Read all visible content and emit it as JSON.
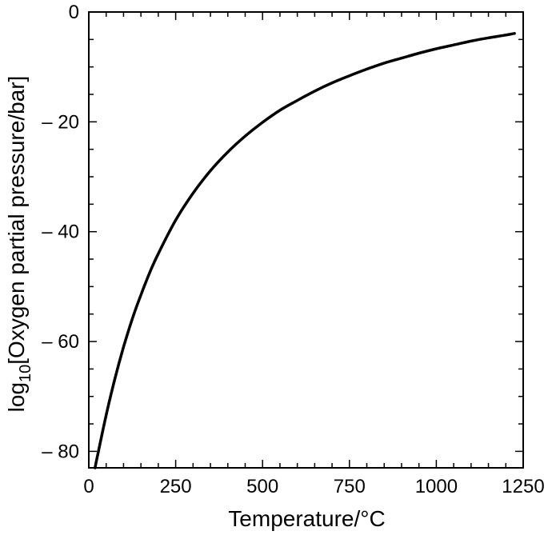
{
  "chart_data": {
    "type": "line",
    "title": "",
    "xlabel": "Temperature/°C",
    "ylabel": {
      "prefix": "log",
      "subscript": "10",
      "suffix": "[Oxygen partial pressure/bar]"
    },
    "xlim": [
      0,
      1250
    ],
    "ylim": [
      -83,
      0
    ],
    "grid": false,
    "legend": "none",
    "x_ticks": [
      {
        "value": 0,
        "label": "0"
      },
      {
        "value": 250,
        "label": "250"
      },
      {
        "value": 500,
        "label": "500"
      },
      {
        "value": 750,
        "label": "750"
      },
      {
        "value": 1000,
        "label": "1000"
      },
      {
        "value": 1250,
        "label": "1250"
      }
    ],
    "y_ticks": [
      {
        "value": 0,
        "label": "0"
      },
      {
        "value": -20,
        "label": "– 20"
      },
      {
        "value": -40,
        "label": "– 40"
      },
      {
        "value": -60,
        "label": "– 60"
      },
      {
        "value": -80,
        "label": "– 80"
      }
    ],
    "x_minor_step": 50,
    "y_minor_step": 5,
    "series": [
      {
        "color": "#000000",
        "x": [
          18,
          25,
          50,
          75,
          100,
          125,
          150,
          175,
          200,
          250,
          300,
          350,
          400,
          450,
          500,
          550,
          600,
          650,
          700,
          750,
          800,
          850,
          900,
          950,
          1000,
          1050,
          1100,
          1150,
          1200,
          1225
        ],
        "y": [
          -83,
          -80.8,
          -73.4,
          -66.8,
          -61.0,
          -55.9,
          -51.5,
          -47.5,
          -44.0,
          -37.9,
          -33.0,
          -28.9,
          -25.5,
          -22.6,
          -20.1,
          -17.9,
          -16.1,
          -14.4,
          -12.9,
          -11.6,
          -10.4,
          -9.3,
          -8.4,
          -7.5,
          -6.7,
          -6.0,
          -5.3,
          -4.7,
          -4.2,
          -3.9
        ]
      }
    ]
  }
}
